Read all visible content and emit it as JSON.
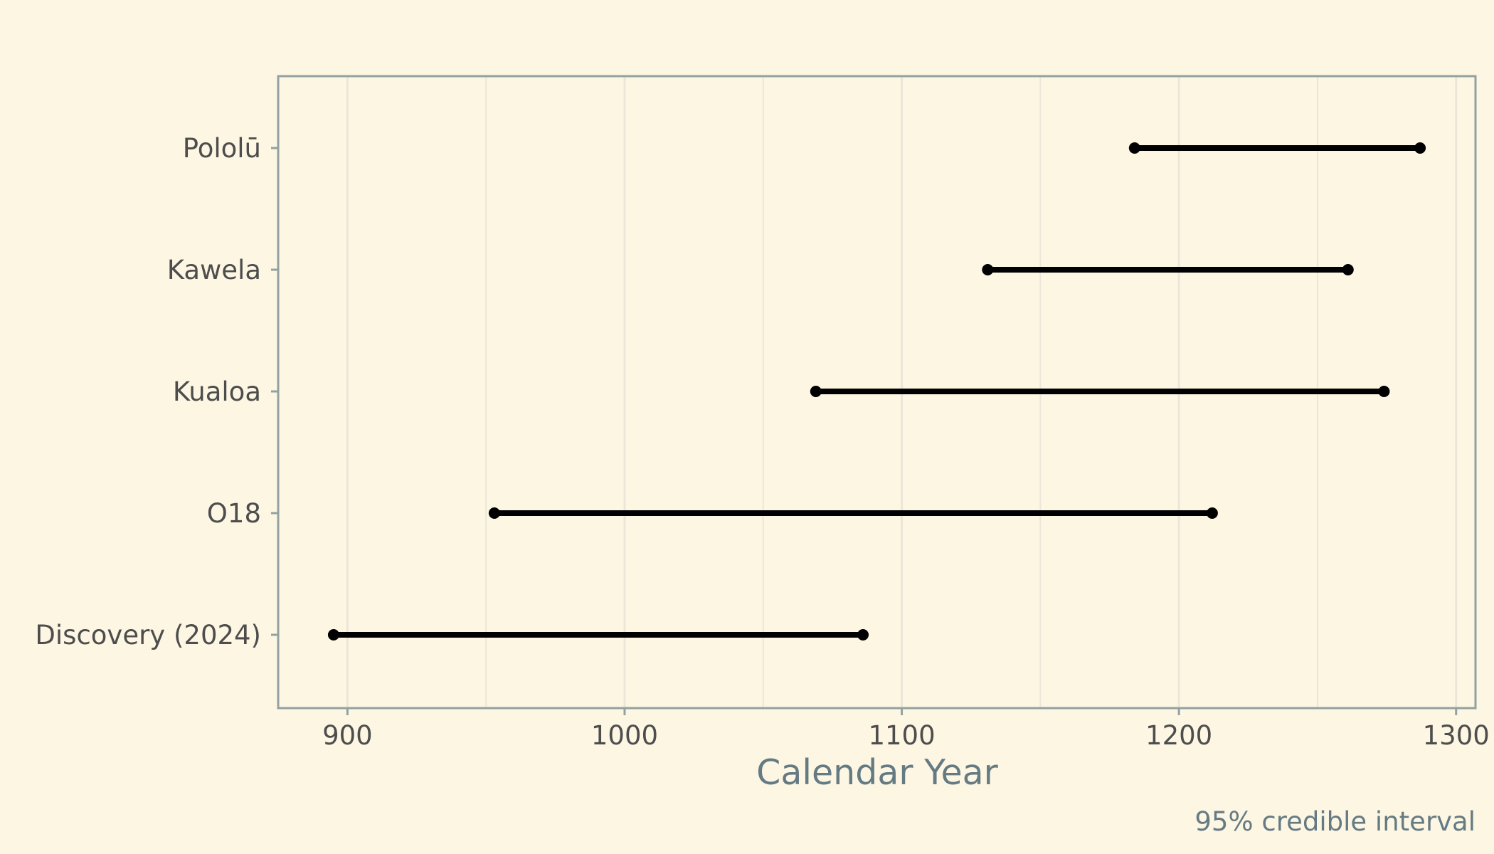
{
  "chart_data": {
    "type": "dumbbell",
    "xlabel": "Calendar Year",
    "caption": "95% credible interval",
    "xlim": [
      875,
      1307
    ],
    "x_ticks": [
      900,
      1000,
      1100,
      1200,
      1300
    ],
    "x_minor_ticks": [
      950,
      1050,
      1150,
      1250
    ],
    "grid": "vertical",
    "categories": [
      "Discovery (2024)",
      "O18",
      "Kualoa",
      "Kawela",
      "Pololū"
    ],
    "intervals": [
      {
        "label": "Discovery (2024)",
        "low": 895,
        "high": 1086
      },
      {
        "label": "O18",
        "low": 953,
        "high": 1212
      },
      {
        "label": "Kualoa",
        "low": 1069,
        "high": 1274
      },
      {
        "label": "Kawela",
        "low": 1131,
        "high": 1261
      },
      {
        "label": "Pololū",
        "low": 1184,
        "high": 1287
      }
    ],
    "colors": {
      "background": "#fdf6e3",
      "interval": "#000000",
      "frame": "#93a1a1"
    }
  }
}
